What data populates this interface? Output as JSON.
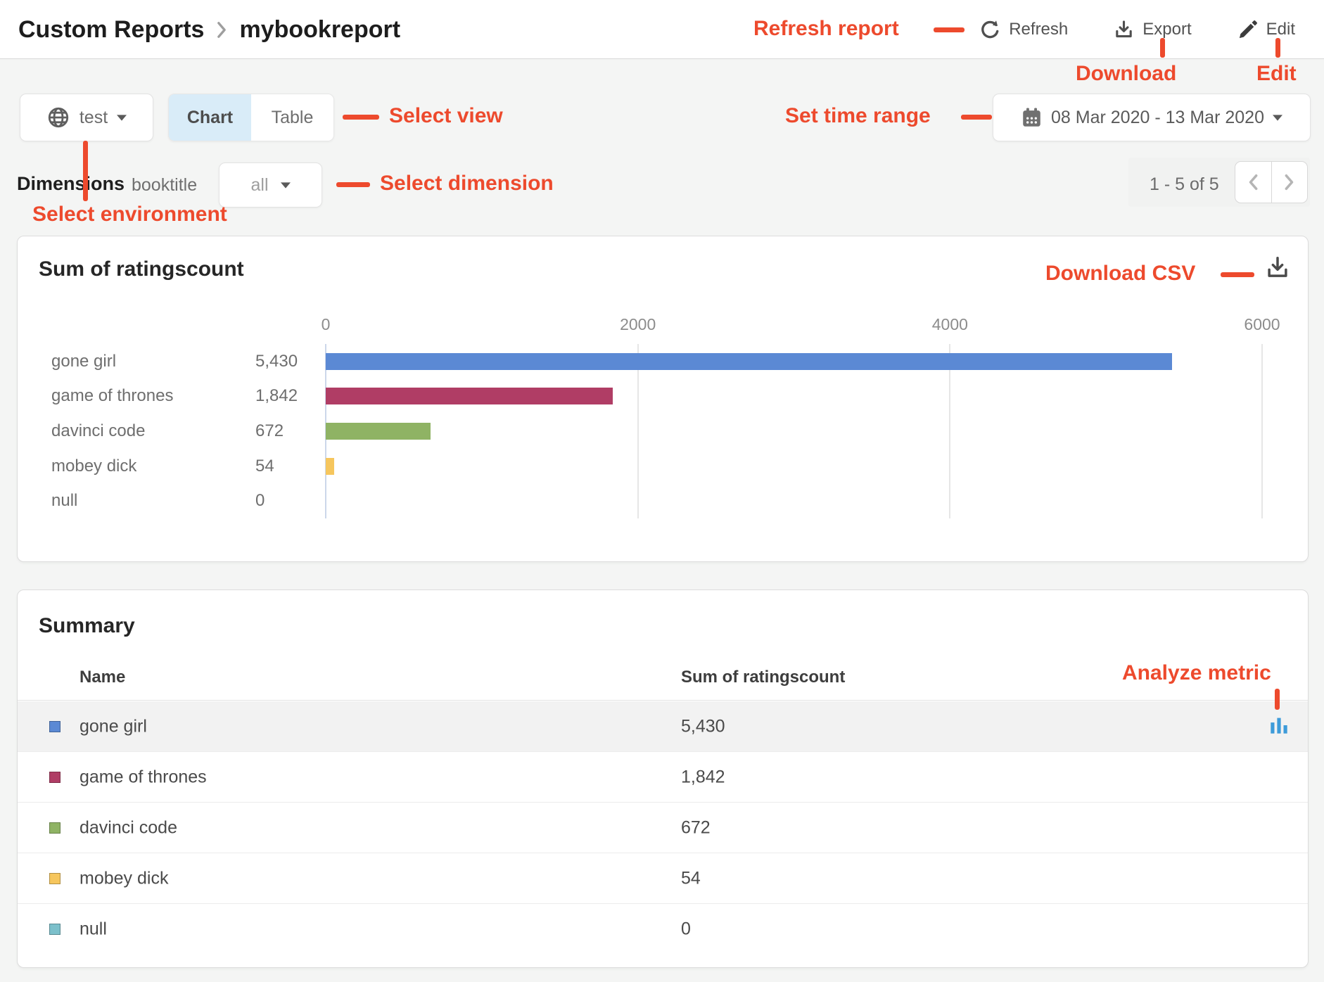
{
  "header": {
    "breadcrumb": {
      "root": "Custom Reports",
      "current": "mybookreport"
    },
    "actions": {
      "refresh": "Refresh",
      "export": "Export",
      "edit": "Edit"
    }
  },
  "annotations": {
    "color": "#ed4a2d",
    "refresh_report": "Refresh report",
    "download": "Download",
    "edit": "Edit",
    "select_view": "Select view",
    "set_time_range": "Set time range",
    "select_dimension": "Select dimension",
    "select_environment": "Select environment",
    "download_csv": "Download CSV",
    "analyze_metric": "Analyze metric"
  },
  "toolbar": {
    "environment": {
      "value": "test"
    },
    "view_toggle": {
      "options": [
        "Chart",
        "Table"
      ],
      "selected": "Chart"
    },
    "date_range": {
      "value": "08 Mar 2020 - 13 Mar 2020"
    }
  },
  "dimensions": {
    "label": "Dimensions",
    "dimension_name": "booktitle",
    "filter": {
      "value": "all"
    }
  },
  "pagination": {
    "range_text": "1 - 5 of 5"
  },
  "chart_card": {
    "title": "Sum of ratingscount"
  },
  "chart_data": {
    "type": "bar",
    "orientation": "horizontal",
    "title": "Sum of ratingscount",
    "categories": [
      "gone girl",
      "game of thrones",
      "davinci code",
      "mobey dick",
      "null"
    ],
    "values": [
      5430,
      1842,
      672,
      54,
      0
    ],
    "value_labels": [
      "5,430",
      "1,842",
      "672",
      "54",
      "0"
    ],
    "colors": [
      "#5b89d4",
      "#b03d65",
      "#8fb364",
      "#f6c65d",
      "#7cc0cb"
    ],
    "xlim": [
      0,
      6000
    ],
    "ticks": [
      0,
      2000,
      4000,
      6000
    ],
    "grid": true,
    "xlabel": "",
    "ylabel": ""
  },
  "summary": {
    "title": "Summary",
    "columns": [
      "Name",
      "Sum of ratingscount"
    ],
    "rows": [
      {
        "name": "gone girl",
        "value": "5,430",
        "color": "#5b89d4",
        "analyze": true
      },
      {
        "name": "game of thrones",
        "value": "1,842",
        "color": "#b03d65",
        "analyze": false
      },
      {
        "name": "davinci code",
        "value": "672",
        "color": "#8fb364",
        "analyze": false
      },
      {
        "name": "mobey dick",
        "value": "54",
        "color": "#f6c65d",
        "analyze": false
      },
      {
        "name": "null",
        "value": "0",
        "color": "#7cc0cb",
        "analyze": false
      }
    ]
  }
}
